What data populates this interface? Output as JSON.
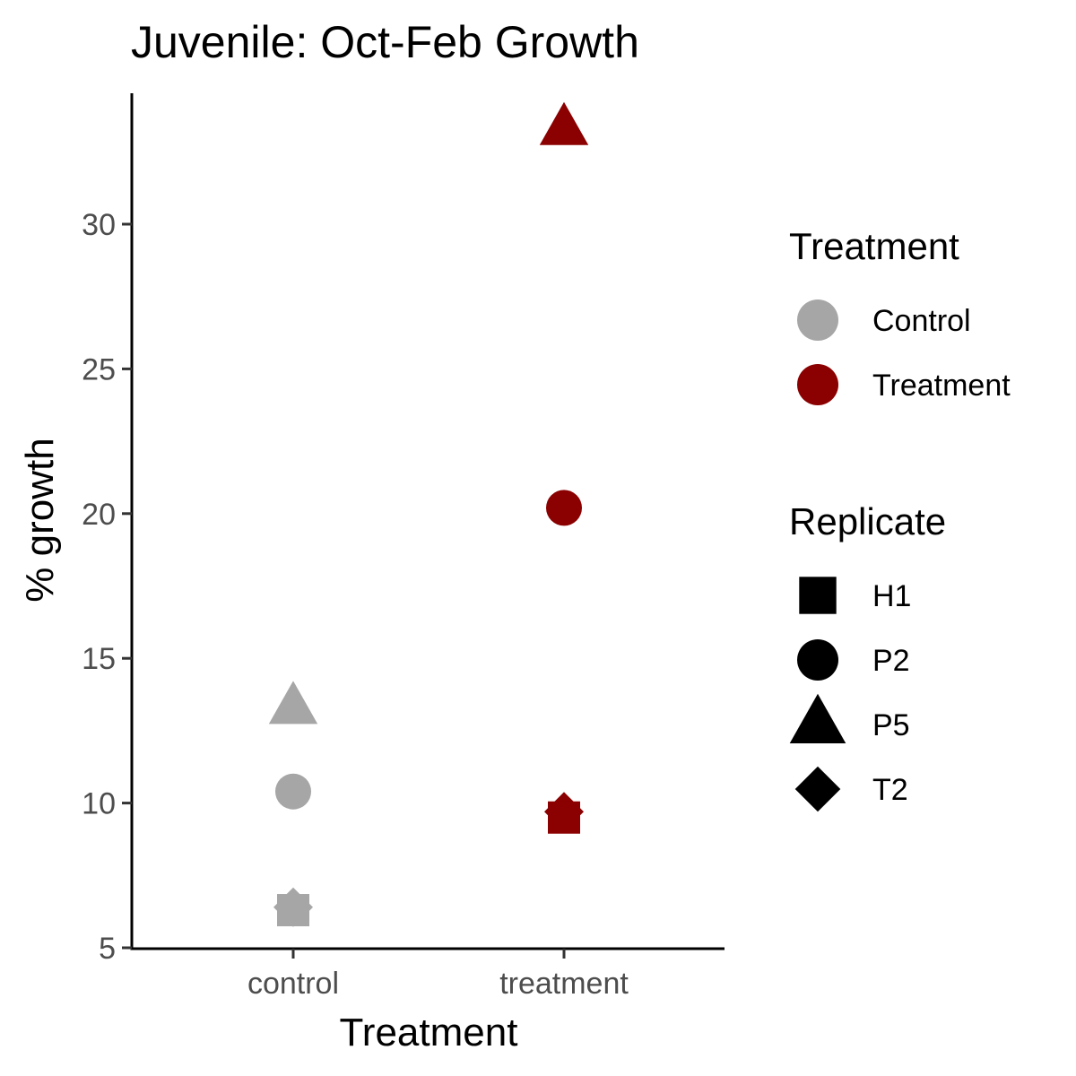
{
  "chart_data": {
    "type": "scatter",
    "title": "Juvenile: Oct-Feb Growth",
    "xlabel": "Treatment",
    "ylabel": "% growth",
    "categories": [
      "control",
      "treatment"
    ],
    "yticks": [
      5,
      10,
      15,
      20,
      25,
      30
    ],
    "ylim": [
      5,
      34.5
    ],
    "grid": false,
    "points": [
      {
        "x": "control",
        "y": 6.4,
        "group": "Control",
        "replicate": "T2"
      },
      {
        "x": "control",
        "y": 6.3,
        "group": "Control",
        "replicate": "H1"
      },
      {
        "x": "control",
        "y": 10.4,
        "group": "Control",
        "replicate": "P2"
      },
      {
        "x": "control",
        "y": 13.3,
        "group": "Control",
        "replicate": "P5"
      },
      {
        "x": "treatment",
        "y": 9.7,
        "group": "Treatment",
        "replicate": "T2"
      },
      {
        "x": "treatment",
        "y": 9.5,
        "group": "Treatment",
        "replicate": "H1"
      },
      {
        "x": "treatment",
        "y": 20.2,
        "group": "Treatment",
        "replicate": "P2"
      },
      {
        "x": "treatment",
        "y": 33.3,
        "group": "Treatment",
        "replicate": "P5"
      }
    ],
    "legends": [
      {
        "title": "Treatment",
        "placement": "right",
        "entries": [
          {
            "label": "Control",
            "color": "#a6a6a6",
            "shape": "circle"
          },
          {
            "label": "Treatment",
            "color": "#8b0000",
            "shape": "circle"
          }
        ]
      },
      {
        "title": "Replicate",
        "placement": "right",
        "entries": [
          {
            "label": "H1",
            "color": "#000000",
            "shape": "square"
          },
          {
            "label": "P2",
            "color": "#000000",
            "shape": "circle"
          },
          {
            "label": "P5",
            "color": "#000000",
            "shape": "triangle"
          },
          {
            "label": "T2",
            "color": "#000000",
            "shape": "diamond"
          }
        ]
      }
    ],
    "colors": {
      "Control": "#a6a6a6",
      "Treatment": "#8b0000"
    },
    "shapes": {
      "H1": "square",
      "P2": "circle",
      "P5": "triangle",
      "T2": "diamond"
    }
  }
}
